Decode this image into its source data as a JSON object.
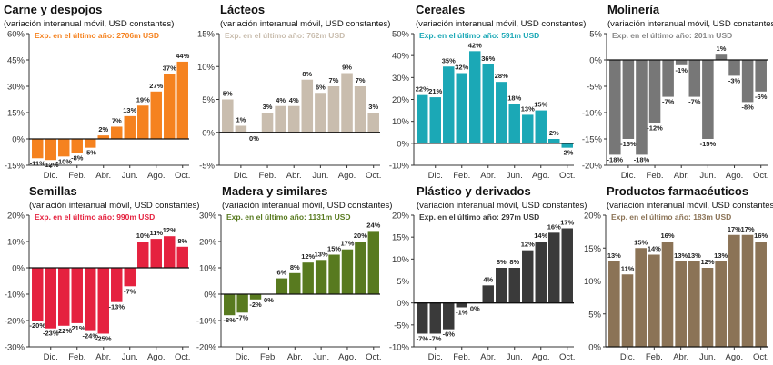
{
  "chart_data": [
    {
      "type": "bar",
      "title": "Carne y despojos",
      "subtitle": "(variación interanual móvil, USD constantes)",
      "annotation": "Exp. en el último año: 2706m USD",
      "color": "#f5821f",
      "annotation_color": "#f5821f",
      "ylim": [
        -15,
        60
      ],
      "yticks": [
        -15,
        0,
        15,
        30,
        45,
        60
      ],
      "month_labels": [
        "Dic.",
        "Feb.",
        "Abr.",
        "Jun.",
        "Ago.",
        "Oct."
      ],
      "values": [
        -11,
        -12,
        -10,
        -8,
        -5,
        2,
        7,
        13,
        19,
        27,
        37,
        44
      ]
    },
    {
      "type": "bar",
      "title": "Lácteos",
      "subtitle": "(variación interanual móvil, USD constantes)",
      "annotation": "Exp. en el último año: 762m USD",
      "color": "#c9bdae",
      "annotation_color": "#c9bdae",
      "ylim": [
        -5,
        15
      ],
      "yticks": [
        -5,
        0,
        5,
        10,
        15
      ],
      "month_labels": [
        "Dic.",
        "Feb.",
        "Abr.",
        "Jun.",
        "Ago.",
        "Oct."
      ],
      "values": [
        5,
        1,
        0,
        3,
        4,
        4,
        8,
        6,
        7,
        9,
        7,
        3
      ]
    },
    {
      "type": "bar",
      "title": "Cereales",
      "subtitle": "(variación interanual móvil, USD constantes)",
      "annotation": "Exp. en el último año: 591m USD",
      "color": "#1ba8b6",
      "annotation_color": "#1ba8b6",
      "ylim": [
        -10,
        50
      ],
      "yticks": [
        -10,
        0,
        10,
        20,
        30,
        40,
        50
      ],
      "month_labels": [
        "Dic.",
        "Feb.",
        "Abr.",
        "Jun.",
        "Ago.",
        "Oct."
      ],
      "values": [
        22,
        21,
        35,
        32,
        42,
        36,
        28,
        18,
        13,
        15,
        2,
        -2
      ]
    },
    {
      "type": "bar",
      "title": "Molinería",
      "subtitle": "(variación interanual móvil, USD constantes)",
      "annotation": "Exp. en el último año: 201m USD",
      "color": "#777777",
      "annotation_color": "#888888",
      "ylim": [
        -20,
        5
      ],
      "yticks": [
        -20,
        -15,
        -10,
        -5,
        0,
        5
      ],
      "month_labels": [
        "Dic.",
        "Feb.",
        "Abr.",
        "Jun.",
        "Ago.",
        "Oct."
      ],
      "values": [
        -18,
        -15,
        -18,
        -12,
        -7,
        -1,
        -7,
        -15,
        1,
        -3,
        -8,
        -6
      ]
    },
    {
      "type": "bar",
      "title": "Semillas",
      "subtitle": "(variación interanual móvil, USD constantes)",
      "annotation": "Exp. en el último año: 990m USD",
      "color": "#e5223f",
      "annotation_color": "#e5223f",
      "ylim": [
        -30,
        20
      ],
      "yticks": [
        -30,
        -20,
        -10,
        0,
        10,
        20
      ],
      "month_labels": [
        "Dic.",
        "Feb.",
        "Abr.",
        "Jun.",
        "Ago.",
        "Oct."
      ],
      "values": [
        -20,
        -23,
        -22,
        -21,
        -24,
        -25,
        -13,
        -7,
        10,
        11,
        12,
        8
      ]
    },
    {
      "type": "bar",
      "title": "Madera y similares",
      "subtitle": "(variación interanual móvil, USD constantes)",
      "annotation": "Exp. en el último año: 1131m USD",
      "color": "#587a1f",
      "annotation_color": "#587a1f",
      "ylim": [
        -20,
        30
      ],
      "yticks": [
        -20,
        -10,
        0,
        10,
        20,
        30
      ],
      "month_labels": [
        "Dic.",
        "Feb.",
        "Abr.",
        "Jun.",
        "Ago.",
        "Oct."
      ],
      "values": [
        -8,
        -7,
        -2,
        0,
        6,
        8,
        12,
        13,
        15,
        17,
        20,
        24
      ]
    },
    {
      "type": "bar",
      "title": "Plástico y derivados",
      "subtitle": "(variación interanual móvil, USD constantes)",
      "annotation": "Exp. en el último año: 297m USD",
      "color": "#3a3a3a",
      "annotation_color": "#3a3a3a",
      "ylim": [
        -10,
        20
      ],
      "yticks": [
        -10,
        -5,
        0,
        5,
        10,
        15,
        20
      ],
      "month_labels": [
        "Dic.",
        "Feb.",
        "Abr.",
        "Jun.",
        "Ago.",
        "Oct."
      ],
      "values": [
        -7,
        -7,
        -6,
        -1,
        0,
        4,
        8,
        8,
        12,
        14,
        16,
        17
      ]
    },
    {
      "type": "bar",
      "title": "Productos farmacéuticos",
      "subtitle": "(variación interanual móvil, USD constantes)",
      "annotation": "Exp. en el último año: 183m USD",
      "color": "#8b7356",
      "annotation_color": "#8b7356",
      "ylim": [
        0,
        20
      ],
      "yticks": [
        0,
        5,
        10,
        15,
        20
      ],
      "month_labels": [
        "Dic.",
        "Feb.",
        "Abr.",
        "Jun.",
        "Ago.",
        "Oct."
      ],
      "values": [
        13,
        11,
        15,
        14,
        16,
        13,
        13,
        12,
        13,
        17,
        17,
        16
      ]
    }
  ]
}
